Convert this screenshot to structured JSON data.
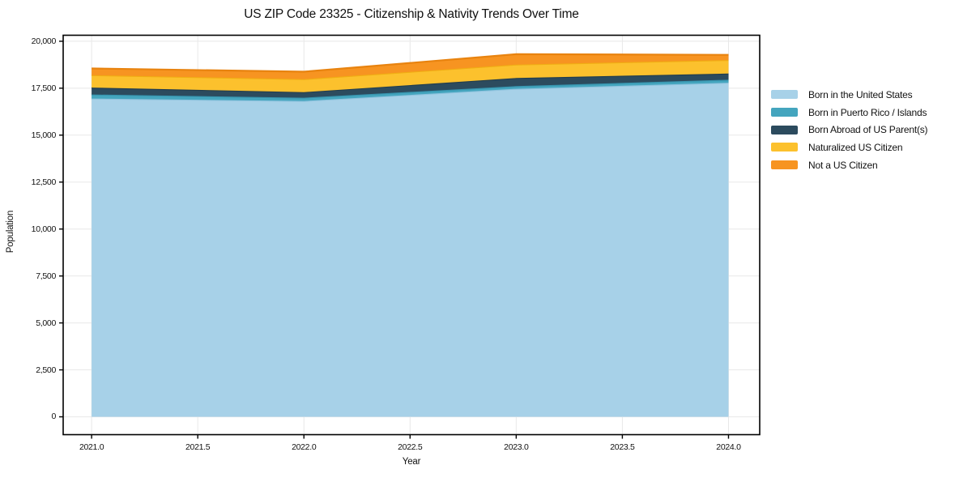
{
  "chart_data": {
    "type": "area",
    "stacked": true,
    "title": "US ZIP Code 23325 - Citizenship & Nativity Trends Over Time",
    "xlabel": "Year",
    "ylabel": "Population",
    "x": [
      2021,
      2022,
      2023,
      2024
    ],
    "series": [
      {
        "name": "Born in the United States",
        "color": "#a7d1e8",
        "edge_color": "#8fc3de",
        "values": [
          16950,
          16820,
          17470,
          17790
        ]
      },
      {
        "name": "Born in Puerto Rico / Islands",
        "color": "#44a5be",
        "edge_color": "#3693ad",
        "values": [
          215,
          175,
          140,
          160
        ]
      },
      {
        "name": "Born Abroad of US Parent(s)",
        "color": "#2c4b5e",
        "edge_color": "#223d4d",
        "values": [
          370,
          295,
          430,
          330
        ]
      },
      {
        "name": "Naturalized US Citizen",
        "color": "#fcc12d",
        "edge_color": "#f0ad13",
        "values": [
          660,
          690,
          720,
          720
        ]
      },
      {
        "name": "Not a US Citizen",
        "color": "#f79421",
        "edge_color": "#e8830f",
        "values": [
          355,
          400,
          550,
          275
        ]
      }
    ],
    "totals": [
      18550,
      18380,
      19310,
      19275
    ],
    "xlim": [
      2020.866,
      2024.147
    ],
    "ylim": [
      -950,
      20320
    ],
    "x_ticks": {
      "values": [
        2021.0,
        2021.5,
        2022.0,
        2022.5,
        2023.0,
        2023.5,
        2024.0
      ],
      "labels": [
        "2021.0",
        "2021.5",
        "2022.0",
        "2022.5",
        "2023.0",
        "2023.5",
        "2024.0"
      ]
    },
    "y_ticks": {
      "values": [
        0,
        2500,
        5000,
        7500,
        10000,
        12500,
        15000,
        17500,
        20000
      ],
      "labels": [
        "0",
        "2,500",
        "5,000",
        "7,500",
        "10,000",
        "12,500",
        "15,000",
        "17,500",
        "20,000"
      ]
    },
    "grid": true,
    "grid_color": "#e8e8e8",
    "axis_color": "#000000",
    "background": "#ffffff",
    "legend_position": "right-outside",
    "legend_frame": false
  }
}
